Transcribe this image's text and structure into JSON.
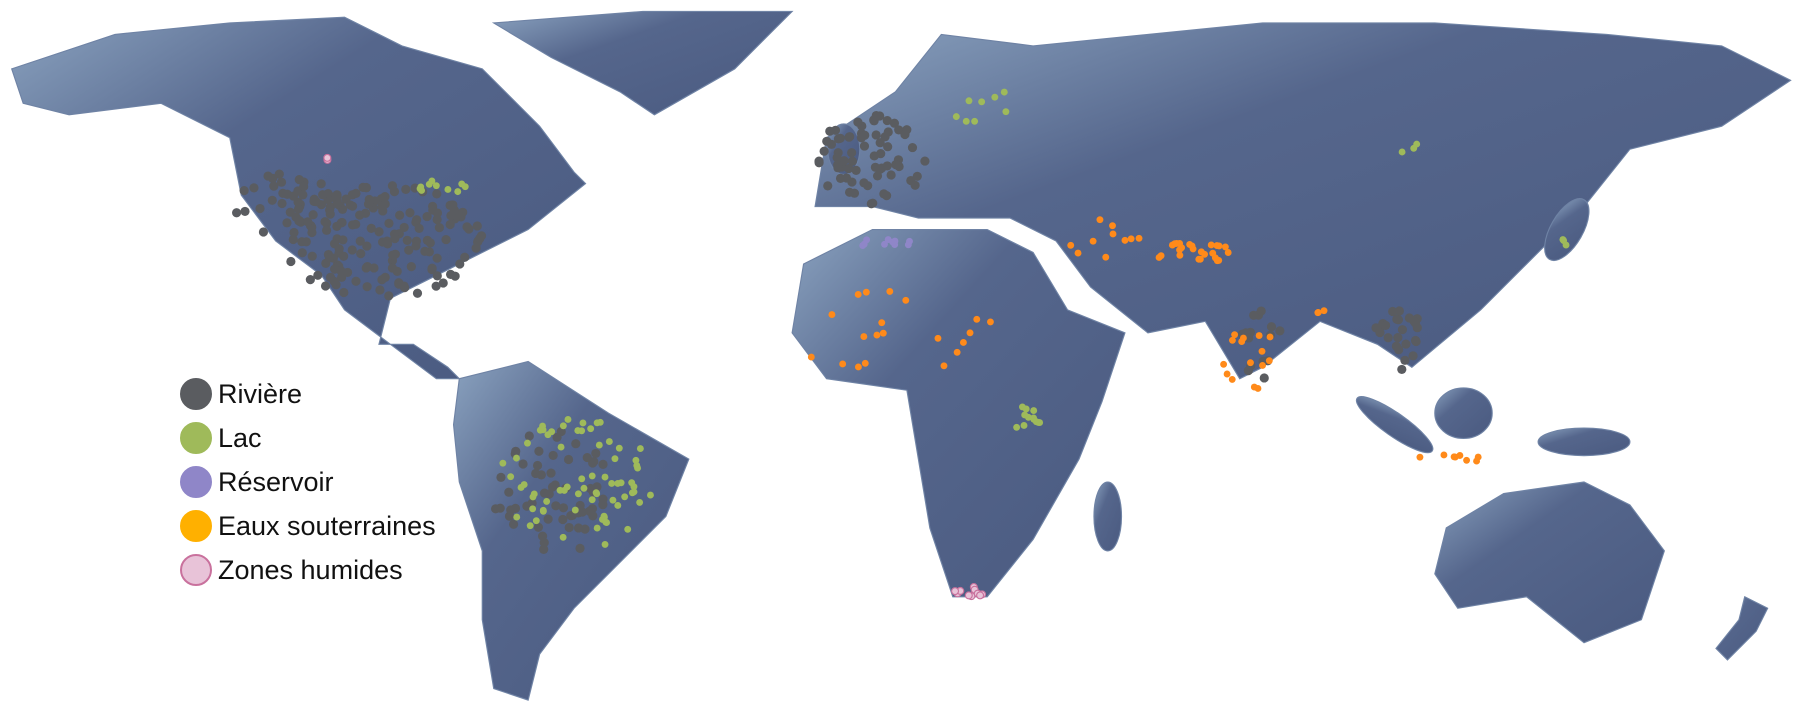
{
  "map": {
    "land_color": "#4f5f85",
    "land_light_color": "#7f97b5",
    "border_color": "#a3455a"
  },
  "legend": {
    "items": [
      {
        "label": "Rivière",
        "color": "#5a5c60",
        "border": "#5a5c60"
      },
      {
        "label": "Lac",
        "color": "#9fba5a",
        "border": "#9fba5a"
      },
      {
        "label": "Réservoir",
        "color": "#8f86c8",
        "border": "#8f86c8"
      },
      {
        "label": "Eaux souterraines",
        "color": "#ffb000",
        "border": "#ffb000"
      },
      {
        "label": "Zones humides",
        "color": "#e8c3d8",
        "border": "#c9719d"
      }
    ]
  }
}
